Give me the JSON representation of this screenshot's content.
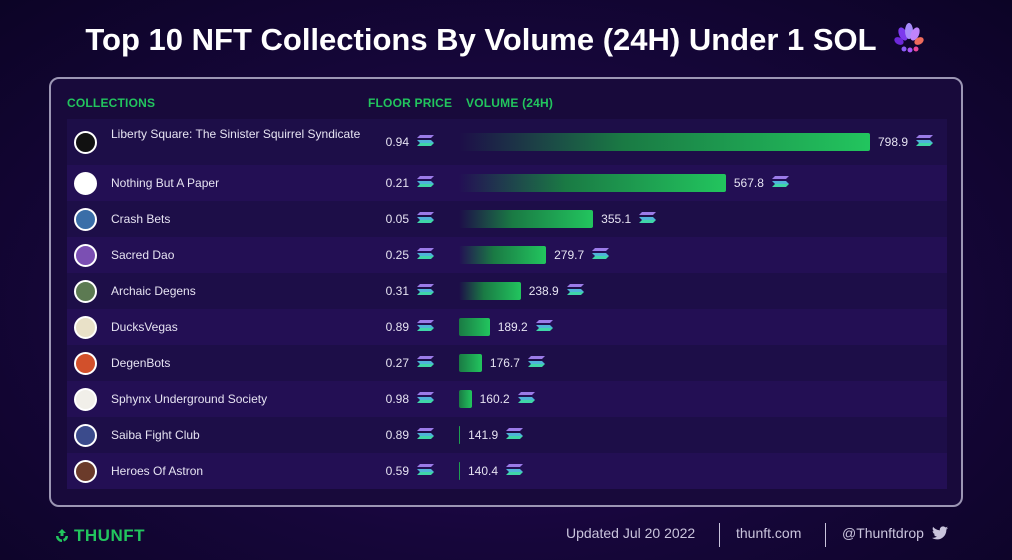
{
  "header": {
    "title": "Top 10 NFT Collections By Volume (24H) Under 1 SOL",
    "brand_icon": "flower-logo-icon"
  },
  "columns": {
    "collections": "COLLECTIONS",
    "floor_price": "FLOOR PRICE",
    "volume": "VOLUME (24H)"
  },
  "chart_data": {
    "type": "bar",
    "orientation": "horizontal",
    "unit_icon": "solana-icon",
    "categories": [
      "Liberty Square: The Sinister Squirrel Syndicate",
      "Nothing But A Paper",
      "Crash Bets",
      "Sacred Dao",
      "Archaic Degens",
      "DucksVegas",
      "DegenBots",
      "Sphynx Underground Society",
      "Saiba Fight Club",
      "Heroes Of Astron"
    ],
    "floor_prices": [
      "0.94",
      "0.21",
      "0.05",
      "0.25",
      "0.31",
      "0.89",
      "0.27",
      "0.98",
      "0.89",
      "0.59"
    ],
    "values": [
      798.9,
      567.8,
      355.1,
      279.7,
      238.9,
      189.2,
      176.7,
      160.2,
      141.9,
      140.4
    ],
    "value_labels": [
      "798.9",
      "567.8",
      "355.1",
      "279.7",
      "238.9",
      "189.2",
      "176.7",
      "160.2",
      "141.9",
      "140.4"
    ],
    "bar_color": "#22c55e"
  },
  "footer": {
    "logo": "THUNFT",
    "updated": "Updated Jul 20 2022",
    "site": "thunft.com",
    "handle": "@Thunftdrop",
    "social_icon": "twitter-icon"
  },
  "colors": {
    "accent": "#22c55e",
    "background": "#16063a",
    "panel": "#180a3b"
  }
}
